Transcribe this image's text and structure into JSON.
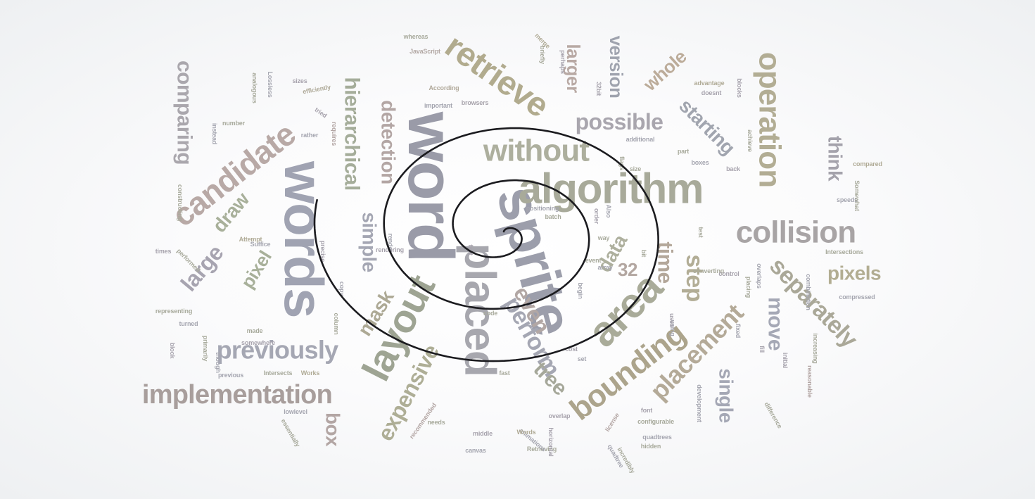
{
  "words": [
    {
      "text": "word",
      "color": "#9a9ba8"
    },
    {
      "text": "sprite",
      "color": "#9c9eab"
    },
    {
      "text": "words",
      "color": "#a0a3b2"
    },
    {
      "text": "algorithm",
      "color": "#a8aa9a"
    },
    {
      "text": "placed",
      "color": "#a7a7ae"
    },
    {
      "text": "layout",
      "color": "#9ea493"
    },
    {
      "text": "area",
      "color": "#a9ab99"
    },
    {
      "text": "bounding",
      "color": "#aca48c"
    },
    {
      "text": "collision",
      "color": "#a8a4a5"
    },
    {
      "text": "retrieve",
      "color": "#b1ab8e"
    },
    {
      "text": "candidate",
      "color": "#b8a9a6"
    },
    {
      "text": "without",
      "color": "#adaf9e"
    },
    {
      "text": "operation",
      "color": "#b2ad94"
    },
    {
      "text": "implementation",
      "color": "#a89e9c"
    },
    {
      "text": "previously",
      "color": "#a5a7b3"
    },
    {
      "text": "placement",
      "color": "#b4aa98"
    },
    {
      "text": "separately",
      "color": "#aaa898"
    },
    {
      "text": "expensive",
      "color": "#aeae96"
    },
    {
      "text": "hierarchical",
      "color": "#a5ad9a"
    },
    {
      "text": "detection",
      "color": "#b3a6a4"
    },
    {
      "text": "comparing",
      "color": "#aaa7ad"
    },
    {
      "text": "possible",
      "color": "#a9a6ae"
    },
    {
      "text": "starting",
      "color": "#a1a5af"
    },
    {
      "text": "version",
      "color": "#9fa3ae"
    },
    {
      "text": "larger",
      "color": "#b8a9a4"
    },
    {
      "text": "whole",
      "color": "#bcac9a"
    },
    {
      "text": "think",
      "color": "#a4a2ab"
    },
    {
      "text": "pixels",
      "color": "#b2ad92"
    },
    {
      "text": "single",
      "color": "#a5a8b5"
    },
    {
      "text": "move",
      "color": "#a5a8b5"
    },
    {
      "text": "perform",
      "color": "#a5a7b3"
    },
    {
      "text": "tree",
      "color": "#a6a89a"
    },
    {
      "text": "even",
      "color": "#b2a7a4"
    },
    {
      "text": "step",
      "color": "#b2ad96"
    },
    {
      "text": "time",
      "color": "#b3a79a"
    },
    {
      "text": "data",
      "color": "#aeb09e"
    },
    {
      "text": "32",
      "color": "#b3a7a1"
    },
    {
      "text": "draw",
      "color": "#a8b09a"
    },
    {
      "text": "large",
      "color": "#a7a4b0"
    },
    {
      "text": "pixel",
      "color": "#a8b09a"
    },
    {
      "text": "simple",
      "color": "#a4a6b3"
    },
    {
      "text": "mask",
      "color": "#ada995"
    },
    {
      "text": "box",
      "color": "#b3a6a4"
    },
    {
      "text": "JavaScript",
      "color": "#b2a8a4"
    },
    {
      "text": "whereas",
      "color": "#a8aa9c"
    },
    {
      "text": "According",
      "color": "#b0a89a"
    },
    {
      "text": "browsers",
      "color": "#a7a3ab"
    },
    {
      "text": "important",
      "color": "#a5a6b0"
    },
    {
      "text": "efficiently",
      "color": "#b0ab9a"
    },
    {
      "text": "sizes",
      "color": "#a7a3ad"
    },
    {
      "text": "number",
      "color": "#a8aa9c"
    },
    {
      "text": "rather",
      "color": "#a5a6b0"
    },
    {
      "text": "requires",
      "color": "#b3a6a4"
    },
    {
      "text": "constructing",
      "color": "#a8aa9c"
    },
    {
      "text": "Attempt",
      "color": "#b0ab96"
    },
    {
      "text": "Suffice",
      "color": "#a5a6b0"
    },
    {
      "text": "performed",
      "color": "#a8aa9c"
    },
    {
      "text": "times",
      "color": "#a7a3ad"
    },
    {
      "text": "representing",
      "color": "#a8aa9c"
    },
    {
      "text": "turned",
      "color": "#a5a6b0"
    },
    {
      "text": "somewhere",
      "color": "#a7a3ad"
    },
    {
      "text": "made",
      "color": "#a8aa9c"
    },
    {
      "text": "block",
      "color": "#a7a3ad"
    },
    {
      "text": "previous",
      "color": "#a5a6b0"
    },
    {
      "text": "Intersects",
      "color": "#a8aa9c"
    },
    {
      "text": "Works",
      "color": "#b0ab96"
    },
    {
      "text": "lowlevel",
      "color": "#a5a6b0"
    },
    {
      "text": "essentially",
      "color": "#a8aa9c"
    },
    {
      "text": "recommended",
      "color": "#b3a6a4"
    },
    {
      "text": "needs",
      "color": "#a8aa9c"
    },
    {
      "text": "canvas",
      "color": "#a5a6b0"
    },
    {
      "text": "middle",
      "color": "#a7a3ad"
    },
    {
      "text": "Retrieving",
      "color": "#a8aa9c"
    },
    {
      "text": "animations",
      "color": "#a5a6b0"
    },
    {
      "text": "Words",
      "color": "#b0ab96"
    },
    {
      "text": "overlap",
      "color": "#a7a3ad"
    },
    {
      "text": "hidden",
      "color": "#a8aa9c"
    },
    {
      "text": "quadtrees",
      "color": "#a5a6b0"
    },
    {
      "text": "configurable",
      "color": "#a8aa9c"
    },
    {
      "text": "font",
      "color": "#a7a3ad"
    },
    {
      "text": "license",
      "color": "#b3a6a4"
    },
    {
      "text": "code",
      "color": "#a8aa9c"
    },
    {
      "text": "positioning",
      "color": "#a5a6b0"
    },
    {
      "text": "batch",
      "color": "#a8aa9c"
    },
    {
      "text": "additional",
      "color": "#a5a6b0"
    },
    {
      "text": "advantage",
      "color": "#b0ab96"
    },
    {
      "text": "doesnt",
      "color": "#a7a3ad"
    },
    {
      "text": "part",
      "color": "#a8aa9c"
    },
    {
      "text": "boxes",
      "color": "#a5a6b0"
    },
    {
      "text": "back",
      "color": "#a7a3ad"
    },
    {
      "text": "size",
      "color": "#a8aa9c"
    },
    {
      "text": "compared",
      "color": "#b0ab96"
    },
    {
      "text": "speeds",
      "color": "#a5a6b0"
    },
    {
      "text": "Intersections",
      "color": "#a8aa9c"
    },
    {
      "text": "compressed",
      "color": "#a5a6b0"
    },
    {
      "text": "converting",
      "color": "#a8aa9c"
    },
    {
      "text": "control",
      "color": "#a7a3ad"
    },
    {
      "text": "overlaps",
      "color": "#a5a6b0"
    },
    {
      "text": "Somewhat",
      "color": "#a8aa9c"
    },
    {
      "text": "reasonable",
      "color": "#b3a6a4"
    },
    {
      "text": "increasing",
      "color": "#a8aa9c"
    },
    {
      "text": "combination",
      "color": "#a5a6b0"
    },
    {
      "text": "initial",
      "color": "#a7a3ad"
    },
    {
      "text": "difference",
      "color": "#a8aa9c"
    },
    {
      "text": "development",
      "color": "#a5a6b0"
    },
    {
      "text": "incredibly",
      "color": "#a8aa9c"
    },
    {
      "text": "horizontal",
      "color": "#a7a3ad"
    },
    {
      "text": "quadtree",
      "color": "#a5a6b0"
    },
    {
      "text": "briefly",
      "color": "#a8aa9c"
    },
    {
      "text": "merge",
      "color": "#b0ab96"
    },
    {
      "text": "perhaps",
      "color": "#a7a3ad"
    },
    {
      "text": "analogous",
      "color": "#a8aa9c"
    },
    {
      "text": "instead",
      "color": "#a5a6b0"
    },
    {
      "text": "tried",
      "color": "#a7a3ad"
    },
    {
      "text": "primarily",
      "color": "#a8aa9c"
    },
    {
      "text": "though",
      "color": "#a5a6b0"
    },
    {
      "text": "precise",
      "color": "#a7a3ad"
    },
    {
      "text": "column",
      "color": "#a8aa9c"
    },
    {
      "text": "copy",
      "color": "#a5a6b0"
    },
    {
      "text": "fact",
      "color": "#a7a3ad"
    },
    {
      "text": "event",
      "color": "#a8aa9c"
    },
    {
      "text": "Lossless",
      "color": "#a5a6b0"
    },
    {
      "text": "blocks",
      "color": "#a7a3ad"
    },
    {
      "text": "achieve",
      "color": "#a8aa9c"
    },
    {
      "text": "render",
      "color": "#a5a6b0"
    },
    {
      "text": "rendering",
      "color": "#a7a3ad"
    },
    {
      "text": "placing",
      "color": "#a8aa9c"
    },
    {
      "text": "begin",
      "color": "#a5a6b0"
    },
    {
      "text": "fill",
      "color": "#a7a3ad"
    },
    {
      "text": "test",
      "color": "#a8aa9c"
    },
    {
      "text": "using",
      "color": "#a5a6b0"
    },
    {
      "text": "uses",
      "color": "#a7a3ad"
    },
    {
      "text": "way",
      "color": "#a8aa9c"
    },
    {
      "text": "Also",
      "color": "#a5a6b0"
    },
    {
      "text": "order",
      "color": "#a7a3ad"
    },
    {
      "text": "bit",
      "color": "#a8aa9c"
    },
    {
      "text": "set",
      "color": "#a5a6b0"
    },
    {
      "text": "cost",
      "color": "#a7a3ad"
    },
    {
      "text": "fast",
      "color": "#a8aa9c"
    },
    {
      "text": "array",
      "color": "#a5a6b0"
    },
    {
      "text": "32bit",
      "color": "#a7a3ad"
    },
    {
      "text": "flags",
      "color": "#a8aa9c"
    },
    {
      "text": "fixed",
      "color": "#a5a6b0"
    }
  ]
}
